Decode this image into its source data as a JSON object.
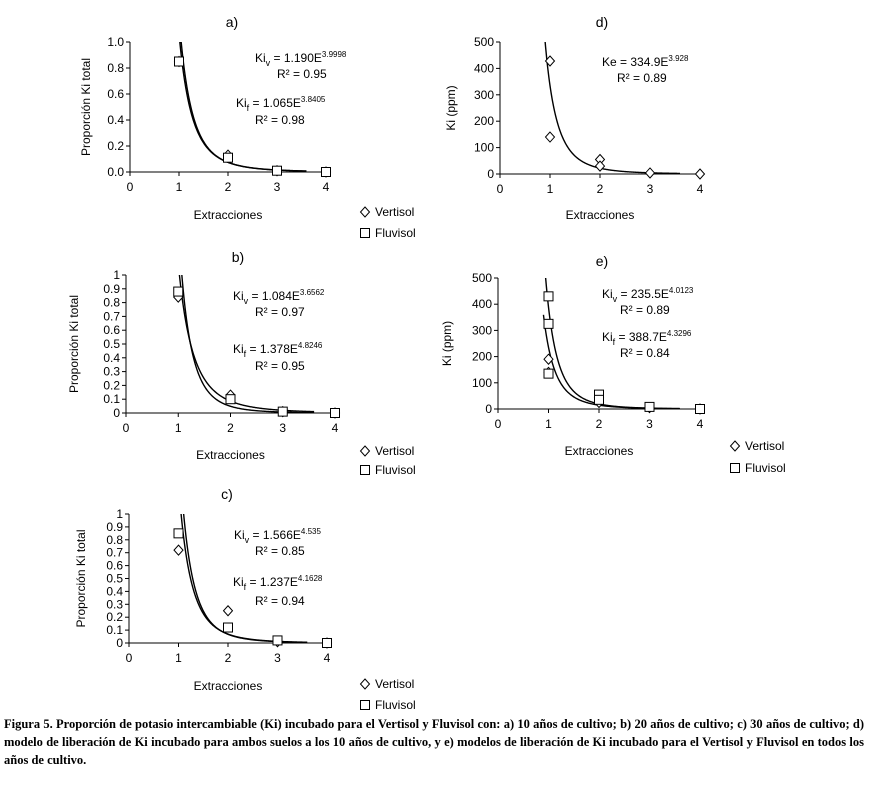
{
  "chart_data": [
    {
      "id": "a",
      "type": "scatter",
      "panel_label": "a)",
      "xlabel": "Extracciones",
      "ylabel": "Proporción Ki total",
      "xlim": [
        0,
        4
      ],
      "ylim": [
        0,
        1.0
      ],
      "xticks": [
        "0",
        "1",
        "2",
        "3",
        "4"
      ],
      "yticks": [
        "0.0",
        "0.2",
        "0.4",
        "0.6",
        "0.8",
        "1.0"
      ],
      "series": [
        {
          "name": "Vertisol",
          "marker": "diamond",
          "x": [
            1,
            2,
            3,
            4
          ],
          "y": [
            0.85,
            0.13,
            0.01,
            0.0
          ],
          "fit": {
            "a": 1.19,
            "b": 3.9998
          }
        },
        {
          "name": "Fluvisol",
          "marker": "square",
          "x": [
            1,
            2,
            3,
            4
          ],
          "y": [
            0.85,
            0.11,
            0.01,
            0.0
          ],
          "fit": {
            "a": 1.065,
            "b": 3.8405
          }
        }
      ],
      "annotations": [
        {
          "lead": "Ki",
          "sub": "v",
          "mid": " = 1.190E",
          "sup": "3.9998"
        },
        {
          "lead": "R² = 0.95"
        },
        {
          "lead": "Ki",
          "sub": "f",
          "mid": " = 1.065E",
          "sup": "3.8405"
        },
        {
          "lead": "R² = 0.98"
        }
      ],
      "legend": [
        "Vertisol",
        "Fluvisol"
      ]
    },
    {
      "id": "b",
      "type": "scatter",
      "panel_label": "b)",
      "xlabel": "Extracciones",
      "ylabel": "Proporción Ki total",
      "xlim": [
        0,
        4
      ],
      "ylim": [
        0,
        1
      ],
      "xticks": [
        "0",
        "1",
        "2",
        "3",
        "4"
      ],
      "yticks": [
        "0",
        "0.1",
        "0.2",
        "0.3",
        "0.4",
        "0.5",
        "0.6",
        "0.7",
        "0.8",
        "0.9",
        "1"
      ],
      "series": [
        {
          "name": "Vertisol",
          "marker": "diamond",
          "x": [
            1,
            2,
            3,
            4
          ],
          "y": [
            0.84,
            0.13,
            0.01,
            0.0
          ],
          "fit": {
            "a": 1.084,
            "b": 3.6562
          }
        },
        {
          "name": "Fluvisol",
          "marker": "square",
          "x": [
            1,
            2,
            3,
            4
          ],
          "y": [
            0.88,
            0.1,
            0.01,
            0.0
          ],
          "fit": {
            "a": 1.378,
            "b": 4.8246
          }
        }
      ],
      "annotations": [
        {
          "lead": "Ki",
          "sub": "v",
          "mid": " = 1.084E",
          "sup": "3.6562"
        },
        {
          "lead": "R² = 0.97"
        },
        {
          "lead": "Ki",
          "sub": "f",
          "mid": " = 1.378E",
          "sup": "4.8246"
        },
        {
          "lead": "R² = 0.95"
        }
      ],
      "legend": [
        "Vertisol",
        "Fluvisol"
      ]
    },
    {
      "id": "c",
      "type": "scatter",
      "panel_label": "c)",
      "xlabel": "Extracciones",
      "ylabel": "Proporción Ki total",
      "xlim": [
        0,
        4
      ],
      "ylim": [
        0,
        1
      ],
      "xticks": [
        "0",
        "1",
        "2",
        "3",
        "4"
      ],
      "yticks": [
        "0",
        "0.1",
        "0.2",
        "0.3",
        "0.4",
        "0.5",
        "0.6",
        "0.7",
        "0.8",
        "0.9",
        "1"
      ],
      "series": [
        {
          "name": "Vertisol",
          "marker": "diamond",
          "x": [
            1,
            2,
            3,
            4
          ],
          "y": [
            0.72,
            0.25,
            0.01,
            0.0
          ],
          "fit": {
            "a": 1.566,
            "b": 4.535
          }
        },
        {
          "name": "Fluvisol",
          "marker": "square",
          "x": [
            1,
            2,
            3,
            4
          ],
          "y": [
            0.85,
            0.12,
            0.02,
            0.0
          ],
          "fit": {
            "a": 1.237,
            "b": 4.1628
          }
        }
      ],
      "annotations": [
        {
          "lead": "Ki",
          "sub": "v",
          "mid": " = 1.566E",
          "sup": "4.535"
        },
        {
          "lead": "R² = 0.85"
        },
        {
          "lead": "Ki",
          "sub": "f",
          "mid": " = 1.237E",
          "sup": "4.1628"
        },
        {
          "lead": "R² = 0.94"
        }
      ],
      "legend": [
        "Vertisol",
        "Fluvisol"
      ]
    },
    {
      "id": "d",
      "type": "scatter",
      "panel_label": "d)",
      "xlabel": "Extracciones",
      "ylabel": "Ki (ppm)",
      "xlim": [
        0,
        4
      ],
      "ylim": [
        0,
        500
      ],
      "xticks": [
        "0",
        "1",
        "2",
        "3",
        "4"
      ],
      "yticks": [
        "0",
        "100",
        "200",
        "300",
        "400",
        "500"
      ],
      "series": [
        {
          "name": "Ki",
          "marker": "diamond",
          "x": [
            1,
            1,
            2,
            2,
            3,
            4
          ],
          "y": [
            428,
            140,
            55,
            30,
            4,
            0
          ],
          "fit": {
            "a": 334.9,
            "b": 3.928
          }
        }
      ],
      "annotations": [
        {
          "lead": "Ke = 334.9E",
          "sup": "3.928"
        },
        {
          "lead": "R² = 0.89"
        }
      ],
      "legend": []
    },
    {
      "id": "e",
      "type": "scatter",
      "panel_label": "e)",
      "xlabel": "Extracciones",
      "ylabel": "Ki (ppm)",
      "xlim": [
        0,
        4
      ],
      "ylim": [
        0,
        500
      ],
      "xticks": [
        "0",
        "1",
        "2",
        "3",
        "4"
      ],
      "yticks": [
        "0",
        "100",
        "200",
        "300",
        "400",
        "500"
      ],
      "series": [
        {
          "name": "Vertisol",
          "marker": "diamond",
          "x": [
            1,
            1,
            2,
            2,
            3,
            4
          ],
          "y": [
            190,
            140,
            45,
            25,
            5,
            0
          ],
          "fit": {
            "a": 235.5,
            "b": 4.0123
          }
        },
        {
          "name": "Fluvisol",
          "marker": "square",
          "x": [
            1,
            1,
            1,
            2,
            2,
            3,
            4
          ],
          "y": [
            430,
            325,
            135,
            55,
            35,
            8,
            0
          ],
          "fit": {
            "a": 388.7,
            "b": 4.3296
          }
        }
      ],
      "annotations": [
        {
          "lead": "Ki",
          "sub": "v",
          "mid": " = 235.5E",
          "sup": "4.0123"
        },
        {
          "lead": "R² = 0.89"
        },
        {
          "lead": "Ki",
          "sub": "f",
          "mid": " = 388.7E",
          "sup": "4.3296"
        },
        {
          "lead": "R² = 0.84"
        }
      ],
      "legend": [
        "Vertisol",
        "Fluvisol"
      ]
    }
  ],
  "caption": "Figura 5. Proporción de potasio intercambiable (Ki) incubado para el Vertisol y Fluvisol con: a) 10 años de cultivo; b) 20 años de cultivo; c) 30 años de cultivo; d) modelo de liberación de Ki incubado para ambos suelos a los 10 años de cultivo, y e) modelos de liberación de Ki incubado para el Vertisol y Fluvisol en todos los años de cultivo."
}
